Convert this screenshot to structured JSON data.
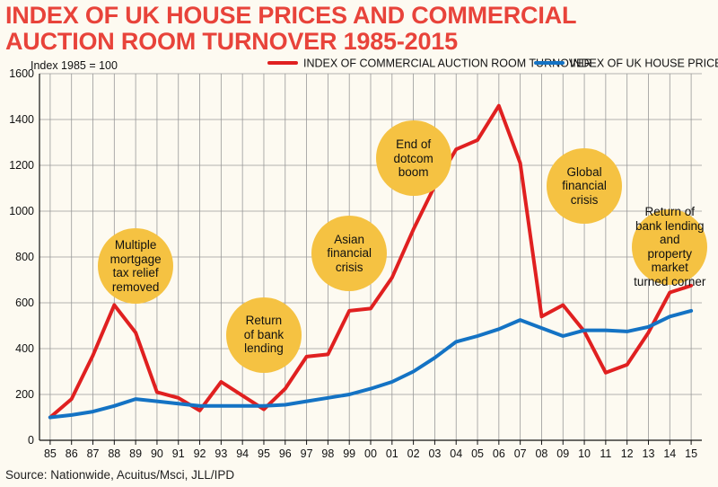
{
  "title_lines": [
    "INDEX OF UK HOUSE PRICES AND COMMERCIAL",
    "AUCTION ROOM TURNOVER 1985-2015"
  ],
  "source": "Source: Nationwide, Acuitus/Msci, JLL/IPD",
  "colors": {
    "title": "#e8433a",
    "turnover": "#e02020",
    "house": "#1473c4",
    "annotation": "#f5c242",
    "grid": "#999999",
    "background": "#fdfaf1"
  },
  "chart_data": {
    "type": "line",
    "title": "INDEX OF UK HOUSE PRICES AND COMMERCIAL AUCTION ROOM TURNOVER 1985-2015",
    "ylabel": "Index 1985 = 100",
    "xlabel": "",
    "ylim": [
      0,
      1600
    ],
    "yticks": [
      0,
      200,
      400,
      600,
      800,
      1000,
      1200,
      1400,
      1600
    ],
    "grid": true,
    "legend_position": "top-right",
    "categories": [
      "85",
      "86",
      "87",
      "88",
      "89",
      "90",
      "91",
      "92",
      "93",
      "94",
      "95",
      "96",
      "97",
      "98",
      "99",
      "00",
      "01",
      "02",
      "03",
      "04",
      "05",
      "06",
      "07",
      "08",
      "09",
      "10",
      "11",
      "12",
      "13",
      "14",
      "15"
    ],
    "series": [
      {
        "name": "INDEX OF COMMERCIAL AUCTION ROOM TURNOVER",
        "color": "#e02020",
        "values": [
          100,
          180,
          370,
          590,
          470,
          210,
          185,
          130,
          255,
          195,
          135,
          225,
          365,
          375,
          565,
          575,
          710,
          920,
          1110,
          1270,
          1310,
          1460,
          1210,
          540,
          590,
          475,
          295,
          330,
          470,
          645,
          675
        ]
      },
      {
        "name": "INDEX OF UK HOUSE PRICES",
        "color": "#1473c4",
        "values": [
          100,
          110,
          125,
          150,
          180,
          170,
          160,
          150,
          150,
          150,
          150,
          155,
          170,
          185,
          200,
          225,
          255,
          300,
          360,
          430,
          455,
          485,
          525,
          490,
          455,
          480,
          480,
          475,
          495,
          540,
          565
        ]
      }
    ],
    "annotations": [
      {
        "lines": [
          "Multiple",
          "mortgage",
          "tax relief",
          "removed"
        ],
        "category": "89",
        "y": 760
      },
      {
        "lines": [
          "Return",
          "of bank",
          "lending"
        ],
        "category": "95",
        "y": 460
      },
      {
        "lines": [
          "Asian",
          "financial",
          "crisis"
        ],
        "category": "99",
        "y": 815
      },
      {
        "lines": [
          "End of",
          "dotcom",
          "boom"
        ],
        "category": "02",
        "y": 1230
      },
      {
        "lines": [
          "Global",
          "financial",
          "crisis"
        ],
        "category": "10",
        "y": 1110
      },
      {
        "lines": [
          "Return of",
          "bank lending and",
          "property market",
          "turned corner"
        ],
        "category": "14",
        "y": 845
      }
    ]
  }
}
